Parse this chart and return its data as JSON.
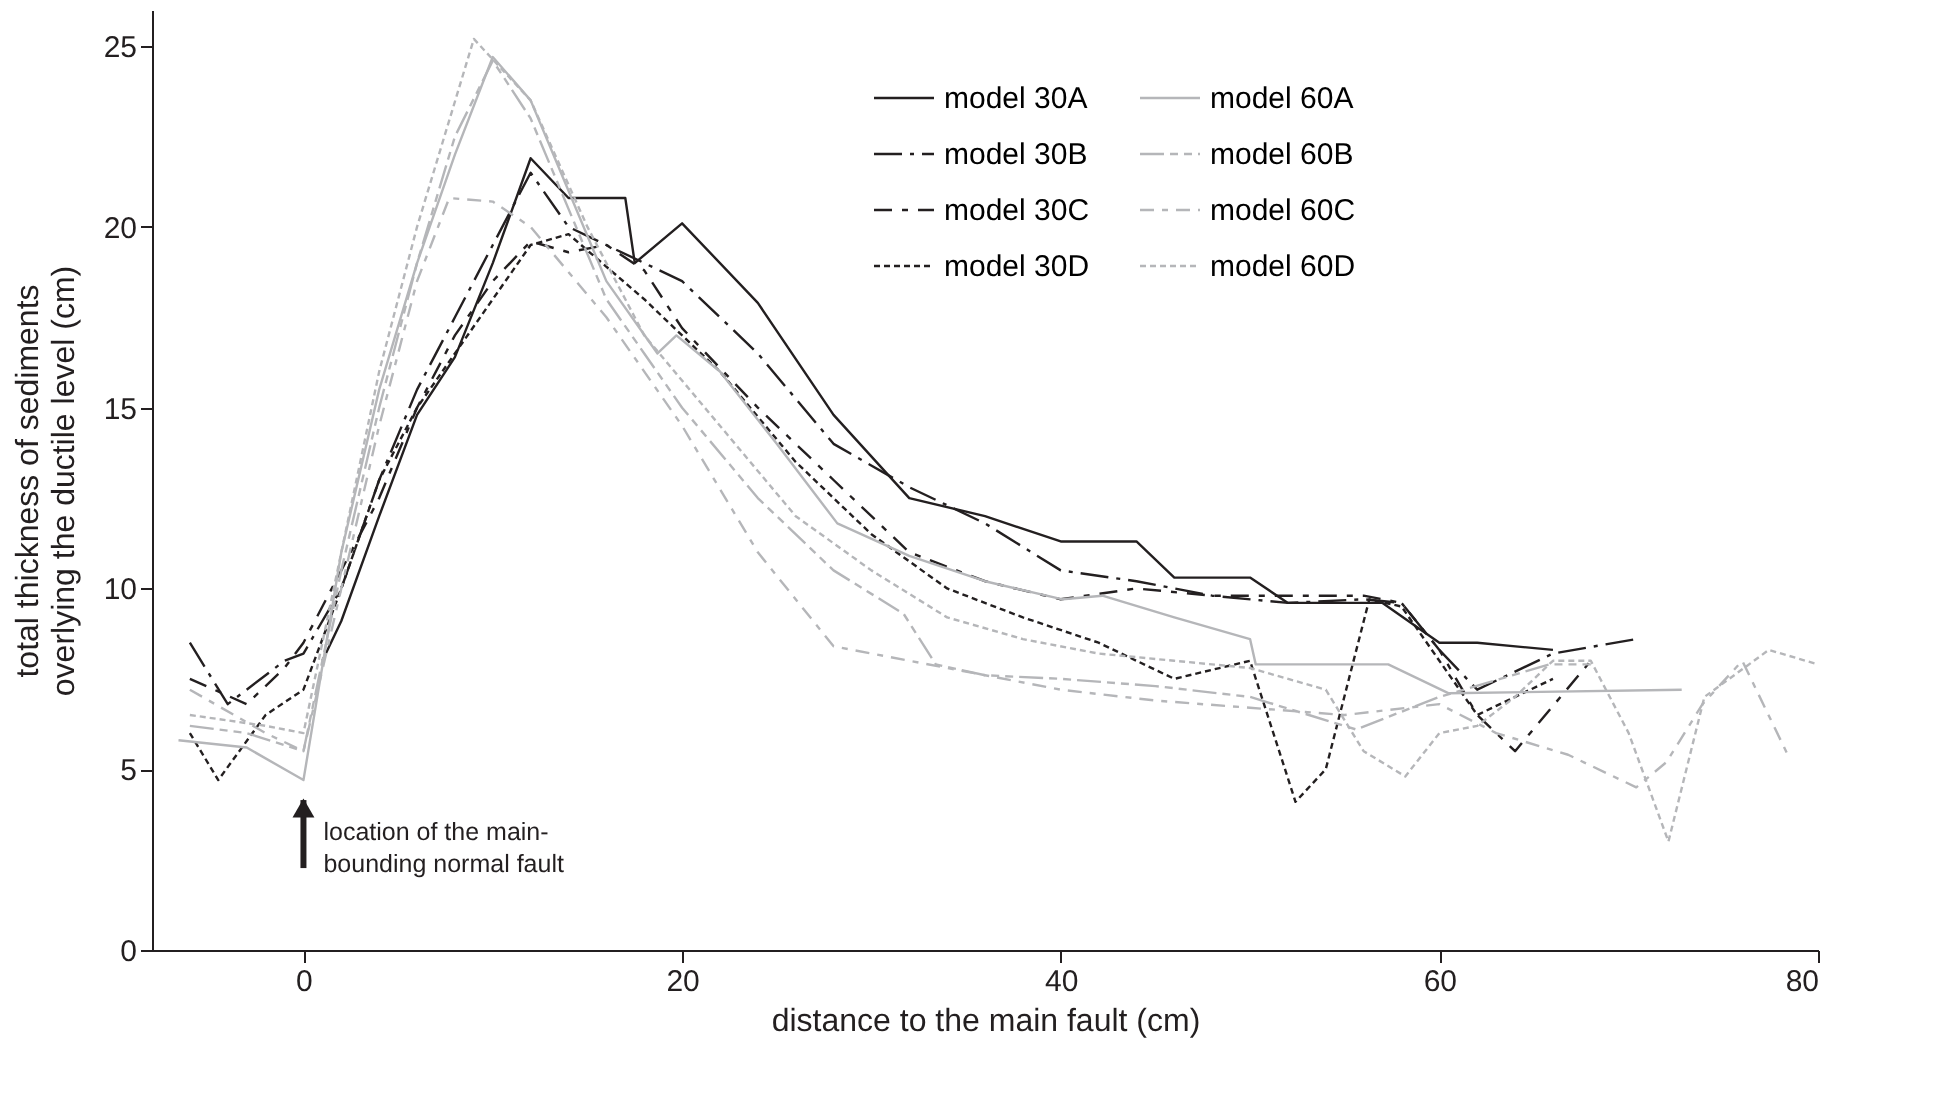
{
  "chart_data": {
    "type": "line",
    "xlabel": "distance to the main fault (cm)",
    "ylabel": "total thickness of sediments\noverlying the ductile level  (cm)",
    "xlim": [
      -8,
      80
    ],
    "xticks": [
      0,
      20,
      40,
      60,
      80
    ],
    "ylim": [
      0,
      26
    ],
    "yticks": [
      0,
      5,
      10,
      15,
      20,
      25
    ],
    "grid": false,
    "legend": "top right",
    "annotations": [
      {
        "text": "location of the main-\nbounding normal fault",
        "x": 0,
        "y": 4.7
      }
    ],
    "series": [
      {
        "name": "model 30A",
        "color": "#231f20",
        "line_style": "solid",
        "x": [
          1,
          2,
          4,
          6,
          8,
          10,
          12,
          14,
          17,
          17.5,
          20,
          24,
          28,
          32,
          36,
          40,
          44,
          46,
          50,
          52,
          57,
          60,
          62,
          66
        ],
        "values": [
          8,
          9.1,
          12,
          14.8,
          16.4,
          19,
          21.9,
          20.8,
          20.8,
          19,
          20.1,
          17.9,
          14.8,
          12.5,
          12,
          11.3,
          11.3,
          10.3,
          10.3,
          9.6,
          9.6,
          8.5,
          8.5,
          8.3
        ]
      },
      {
        "name": "model 30B",
        "color": "#231f20",
        "line_style": "dashed",
        "x": [
          -6,
          -4,
          -1,
          0,
          2,
          4,
          6,
          8,
          10,
          12,
          14,
          16,
          20,
          24,
          28,
          32,
          36,
          40,
          44,
          48,
          52,
          56,
          58,
          60,
          62,
          66,
          70.4
        ],
        "values": [
          8.5,
          6.8,
          8,
          8.2,
          10,
          13,
          15.5,
          17.5,
          19.5,
          21.5,
          20,
          19.5,
          18.5,
          16.5,
          14,
          12.8,
          11.8,
          10.5,
          10.2,
          9.8,
          9.6,
          9.7,
          9.6,
          8.3,
          7.2,
          8.2,
          8.6
        ]
      },
      {
        "name": "model 30C",
        "color": "#231f20",
        "line_style": "dashed",
        "x": [
          -6,
          -3,
          -1,
          0,
          2,
          4,
          6,
          8,
          10,
          12,
          14,
          16,
          18,
          20,
          24,
          28,
          32,
          36,
          40,
          44,
          48,
          52,
          56,
          58,
          60,
          62,
          64,
          68
        ],
        "values": [
          7.5,
          6.8,
          7.8,
          8.5,
          10.5,
          12.5,
          15,
          17,
          18.5,
          19.6,
          19.3,
          19.5,
          18.8,
          17.2,
          15,
          13,
          11,
          10.2,
          9.7,
          10,
          9.8,
          9.8,
          9.8,
          9.6,
          8.3,
          6.5,
          5.5,
          8
        ]
      },
      {
        "name": "model 30D",
        "color": "#231f20",
        "line_style": "dotted",
        "x": [
          -6,
          -4.5,
          -2,
          0,
          2,
          4,
          6,
          8,
          10,
          12,
          14,
          18,
          22,
          26,
          30,
          34,
          38,
          42,
          46,
          50,
          52.4,
          54,
          56.3,
          58,
          60,
          62,
          66
        ],
        "values": [
          6,
          4.7,
          6.5,
          7.2,
          10,
          13,
          15,
          16.5,
          18,
          19.5,
          19.8,
          18,
          16,
          13.5,
          11.5,
          10,
          9.2,
          8.5,
          7.5,
          8,
          4.1,
          5,
          9.7,
          9.5,
          8,
          6.5,
          7.5
        ]
      },
      {
        "name": "model 60A",
        "color": "#b5b6b9",
        "line_style": "solid",
        "x": [
          -6.6,
          -3,
          0,
          2,
          4,
          6,
          8,
          10,
          12,
          14,
          16,
          18.7,
          19.7,
          22,
          25,
          28.2,
          32,
          36,
          40.1,
          42.2,
          46,
          50,
          50.3,
          57.3,
          60.5,
          72.8
        ],
        "values": [
          5.8,
          5.6,
          4.7,
          11,
          15.5,
          19,
          22,
          24.7,
          23.5,
          21,
          18.5,
          16.5,
          17,
          16,
          14,
          11.8,
          10.9,
          10.2,
          9.7,
          9.8,
          9.2,
          8.6,
          7.9,
          7.9,
          7.1,
          7.2
        ]
      },
      {
        "name": "model 60B",
        "color": "#b5b6b9",
        "line_style": "dashed",
        "x": [
          -6,
          -3,
          0,
          2,
          4,
          6,
          8,
          10,
          12,
          14,
          16,
          18,
          20,
          24,
          28,
          31.7,
          33.4,
          36,
          40,
          45,
          50,
          55.6,
          60,
          65.8,
          68
        ],
        "values": [
          6.2,
          6,
          5.5,
          10.5,
          15,
          19,
          22.5,
          24.6,
          23,
          20.5,
          18,
          16.5,
          15,
          12.5,
          10.5,
          9.3,
          7.9,
          7.6,
          7.5,
          7.3,
          7,
          6.1,
          7,
          7.9,
          7.9
        ]
      },
      {
        "name": "model 60C",
        "color": "#b5b6b9",
        "line_style": "dashed",
        "x": [
          -6,
          -2,
          0,
          2,
          4,
          6,
          7.7,
          10,
          12,
          16,
          20,
          24,
          28,
          32,
          36,
          40,
          45,
          50,
          55,
          60,
          63,
          66.8,
          70.4,
          72,
          73.9,
          76,
          78.4
        ],
        "values": [
          7.2,
          6,
          5.5,
          10,
          14.5,
          18.5,
          20.8,
          20.7,
          20,
          17.5,
          14.5,
          11,
          8.4,
          8,
          7.6,
          7.2,
          6.9,
          6.7,
          6.5,
          6.8,
          6,
          5.4,
          4.5,
          5.2,
          6.8,
          8,
          5.4
        ]
      },
      {
        "name": "model 60D",
        "color": "#b5b6b9",
        "line_style": "dotted",
        "x": [
          -6,
          -2,
          0,
          2,
          4,
          6,
          9,
          12,
          15,
          18,
          22,
          26,
          30,
          34,
          38,
          42,
          46,
          50,
          54,
          56,
          58.2,
          60,
          62,
          64,
          66,
          68,
          70,
          72.1,
          74,
          77.4,
          80
        ],
        "values": [
          6.5,
          6.2,
          6,
          11,
          16,
          20,
          25.2,
          23.5,
          20,
          17,
          14.5,
          12,
          10.5,
          9.2,
          8.6,
          8.2,
          8,
          7.8,
          7.2,
          5.5,
          4.8,
          6,
          6.2,
          7,
          8,
          8,
          6,
          3,
          7,
          8.3,
          7.9
        ]
      }
    ]
  }
}
